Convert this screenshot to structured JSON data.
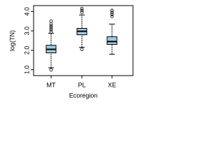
{
  "chart_data": {
    "type": "box",
    "x_label": "Ecoregion",
    "y_label": "log(TN)",
    "categories": [
      "MT",
      "PL",
      "XE"
    ],
    "boxes": [
      {
        "min": 1.1,
        "q1": 1.87,
        "median": 2.05,
        "q3": 2.26,
        "max": 2.88,
        "outliers": [
          1.0,
          2.95,
          3.05,
          3.15,
          3.25,
          3.35,
          3.5
        ]
      },
      {
        "min": 2.15,
        "q1": 2.8,
        "median": 2.98,
        "q3": 3.13,
        "max": 3.82,
        "outliers": [
          2.05,
          3.95,
          4.05,
          4.15
        ]
      },
      {
        "min": 1.8,
        "q1": 2.3,
        "median": 2.45,
        "q3": 2.7,
        "max": 3.35,
        "outliers": [
          3.75,
          3.85,
          3.95,
          4.05
        ]
      }
    ],
    "color": "#9ecae1",
    "ylim": [
      0.7,
      4.3
    ],
    "yticks": [
      {
        "value": 1,
        "label": "1.0"
      },
      {
        "value": 2,
        "label": "2.0"
      },
      {
        "value": 3,
        "label": "3.0"
      },
      {
        "value": 4,
        "label": "4.0"
      }
    ]
  }
}
